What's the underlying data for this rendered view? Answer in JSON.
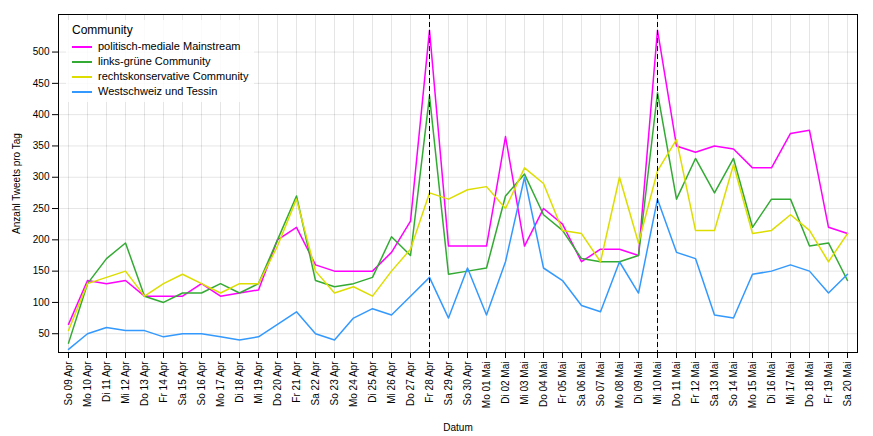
{
  "chart_data": {
    "type": "line",
    "xlabel": "Datum",
    "ylabel": "Anzahl Tweets pro Tag",
    "legend_title": "Community",
    "categories": [
      "So 09 Apr",
      "Mo 10 Apr",
      "Di 11 Apr",
      "Mi 12 Apr",
      "Do 13 Apr",
      "Fr 14 Apr",
      "Sa 15 Apr",
      "So 16 Apr",
      "Mo 17 Apr",
      "Di 18 Apr",
      "Mi 19 Apr",
      "Do 20 Apr",
      "Fr 21 Apr",
      "Sa 22 Apr",
      "So 23 Apr",
      "Mo 24 Apr",
      "Di 25 Apr",
      "Mi 26 Apr",
      "Do 27 Apr",
      "Fr 28 Apr",
      "Sa 29 Apr",
      "So 30 Apr",
      "Mo 01 Mai",
      "Di 02 Mai",
      "Mi 03 Mai",
      "Do 04 Mai",
      "Fr 05 Mai",
      "Sa 06 Mai",
      "So 07 Mai",
      "Mo 08 Mai",
      "Di 09 Mai",
      "Mi 10 Mai",
      "Do 11 Mai",
      "Fr 12 Mai",
      "Sa 13 Mai",
      "So 14 Mai",
      "Mo 15 Mai",
      "Di 16 Mai",
      "Mi 17 Mai",
      "Do 18 Mai",
      "Fr 19 Mai",
      "Sa 20 Mai"
    ],
    "series": [
      {
        "name": "politisch-mediale Mainstream",
        "color": "#FF00FF",
        "values": [
          65,
          135,
          130,
          135,
          110,
          110,
          110,
          130,
          110,
          115,
          120,
          200,
          220,
          160,
          150,
          150,
          150,
          180,
          230,
          535,
          190,
          190,
          190,
          365,
          190,
          250,
          225,
          165,
          185,
          185,
          175,
          535,
          350,
          340,
          350,
          345,
          315,
          315,
          370,
          375,
          220,
          210
        ]
      },
      {
        "name": "links-grüne Community",
        "color": "#33AA33",
        "values": [
          35,
          130,
          170,
          195,
          110,
          100,
          115,
          115,
          130,
          115,
          130,
          200,
          270,
          135,
          125,
          130,
          140,
          205,
          175,
          430,
          145,
          150,
          155,
          270,
          305,
          240,
          215,
          170,
          165,
          165,
          175,
          435,
          265,
          330,
          275,
          330,
          220,
          265,
          265,
          190,
          195,
          135
        ]
      },
      {
        "name": "rechtskonservative Community",
        "color": "#DDDD00",
        "values": [
          55,
          130,
          140,
          150,
          110,
          130,
          145,
          130,
          115,
          130,
          130,
          190,
          265,
          150,
          115,
          125,
          110,
          150,
          185,
          275,
          265,
          280,
          285,
          250,
          315,
          290,
          215,
          210,
          165,
          300,
          195,
          310,
          360,
          215,
          215,
          320,
          210,
          215,
          240,
          215,
          165,
          210
        ]
      },
      {
        "name": "Westschweiz und Tessin",
        "color": "#3399FF",
        "values": [
          25,
          50,
          60,
          55,
          55,
          45,
          50,
          50,
          45,
          40,
          45,
          65,
          85,
          50,
          40,
          75,
          90,
          80,
          110,
          140,
          75,
          155,
          80,
          165,
          300,
          155,
          135,
          95,
          85,
          165,
          115,
          265,
          180,
          170,
          80,
          75,
          145,
          150,
          160,
          150,
          115,
          145
        ]
      }
    ],
    "vertical_lines": [
      "Fr 28 Apr",
      "Mi 10 Mai"
    ],
    "ylim": [
      20,
      560
    ],
    "yticks": [
      50,
      100,
      150,
      200,
      250,
      300,
      350,
      400,
      450,
      500
    ],
    "grid": true,
    "legend": "upper left"
  }
}
